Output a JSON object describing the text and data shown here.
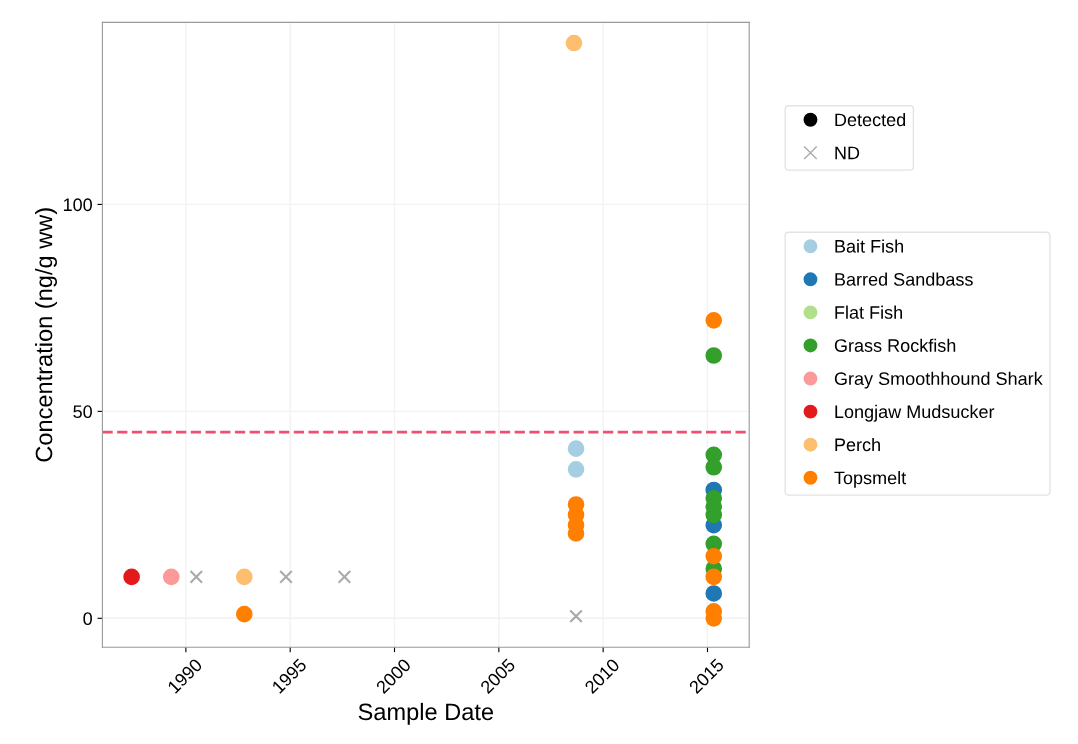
{
  "chart_data": {
    "type": "scatter",
    "xlabel": "Sample Date",
    "ylabel": "Concentration (ng/g ww)",
    "xlim": [
      1986,
      2017
    ],
    "xticks": [
      1990,
      1995,
      2000,
      2005,
      2010,
      2015
    ],
    "ylim": [
      -7,
      144
    ],
    "yticks": [
      0,
      50,
      100
    ],
    "grid": true,
    "legend": "right",
    "ref_lines": [
      {
        "axis": "y",
        "value": 45,
        "color": "#f0506e",
        "line_style": "dashed"
      }
    ],
    "series": [
      {
        "name": "Detected",
        "color": "#000000",
        "marker": "circle"
      },
      {
        "name": "ND",
        "color": "#aaaaaa",
        "marker": "cross",
        "x": [
          1990.5,
          1994.8,
          1997.6,
          2008.7
        ],
        "values": [
          10,
          10,
          10,
          0.5
        ]
      },
      {
        "name": "Bait Fish",
        "color": "#a6cee3",
        "marker": "circle",
        "x": [
          2008.7,
          2008.7
        ],
        "values": [
          41,
          36
        ]
      },
      {
        "name": "Barred Sandbass",
        "color": "#1f78b4",
        "marker": "circle",
        "x": [
          2015.3,
          2015.3,
          2015.3
        ],
        "values": [
          31,
          22.5,
          6
        ]
      },
      {
        "name": "Flat Fish",
        "color": "#b2df8a",
        "marker": "circle"
      },
      {
        "name": "Grass Rockfish",
        "color": "#33a02c",
        "marker": "circle",
        "x": [
          2015.3,
          2015.3,
          2015.3,
          2015.3,
          2015.3,
          2015.3,
          2015.3,
          2015.3
        ],
        "values": [
          63.5,
          39.5,
          36.5,
          29,
          27,
          25,
          18,
          12
        ]
      },
      {
        "name": "Gray Smoothhound Shark",
        "color": "#fb9a99",
        "marker": "circle",
        "x": [
          1989.3
        ],
        "values": [
          10
        ]
      },
      {
        "name": "Longjaw Mudsucker",
        "color": "#e31a1c",
        "marker": "circle",
        "x": [
          1987.4
        ],
        "values": [
          10
        ]
      },
      {
        "name": "Perch",
        "color": "#fdbf6f",
        "marker": "circle",
        "x": [
          1992.8,
          2008.6
        ],
        "values": [
          10,
          139
        ]
      },
      {
        "name": "Topsmelt",
        "color": "#ff7f00",
        "marker": "circle",
        "x": [
          1992.8,
          2008.7,
          2008.7,
          2008.7,
          2008.7,
          2015.3,
          2015.3,
          2015.3,
          2015.3,
          2015.3
        ],
        "values": [
          1,
          27.5,
          25,
          22.5,
          20.5,
          72,
          15,
          10,
          1.7,
          0
        ]
      }
    ]
  }
}
